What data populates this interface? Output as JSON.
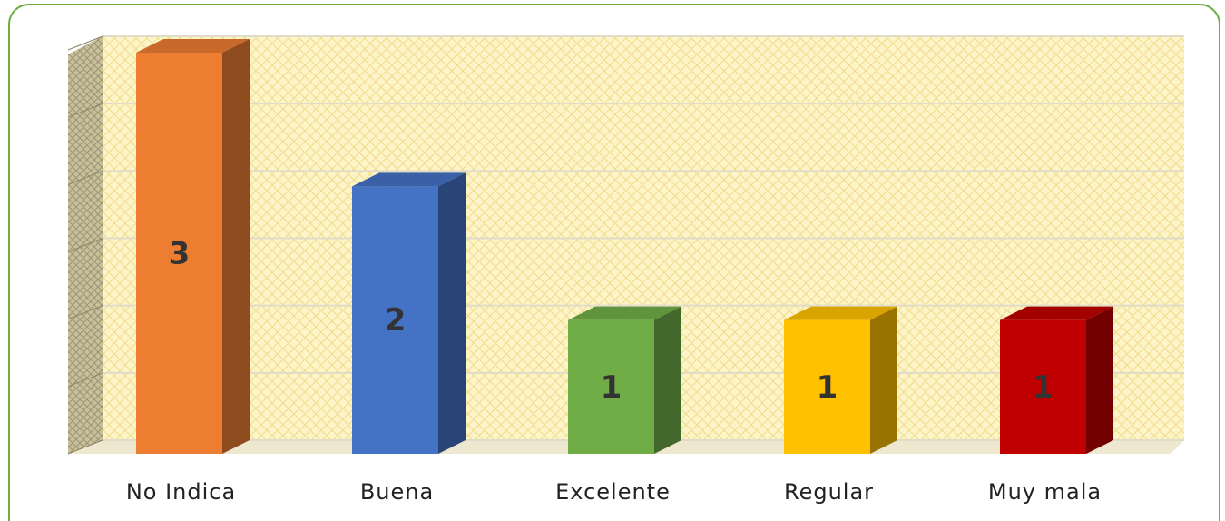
{
  "chart_data": {
    "type": "bar",
    "categories": [
      "No Indica",
      "Buena",
      "Excelente",
      "Regular",
      "Muy mala"
    ],
    "values": [
      3,
      2,
      1,
      1,
      1
    ],
    "colors": [
      "#ed7d31",
      "#4472c4",
      "#70ad47",
      "#ffc000",
      "#c00000"
    ],
    "ylim": [
      0,
      3
    ],
    "yticks": [
      0,
      0.5,
      1,
      1.5,
      2,
      2.5,
      3
    ],
    "grid": true
  }
}
